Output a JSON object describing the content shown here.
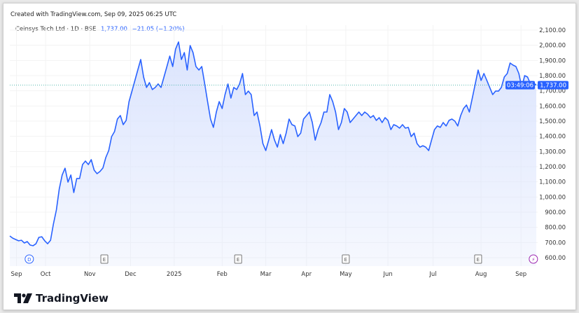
{
  "header": {
    "created": "Created with TradingView.com, Sep 09, 2025 06:25 UTC"
  },
  "legend": {
    "symbol": "Ceinsys Tech Ltd · 1D · BSE",
    "price": "1,737.00",
    "change": "−21.05 (−1.20%)"
  },
  "price_label": {
    "price": "1,737.00",
    "countdown": "03:49:06"
  },
  "colors": {
    "line": "#2962ff",
    "fill": "#dbe4fd",
    "label_bg": "#2962ff",
    "dividend": "#2962ff",
    "split": "#9c27b0"
  },
  "footer": {
    "brand": "TradingView"
  },
  "chart_data": {
    "type": "area",
    "title": "Ceinsys Tech Ltd · 1D · BSE",
    "ylabel": "",
    "xlabel": "",
    "ylim": [
      600,
      2100
    ],
    "yticks": [
      600,
      700,
      800,
      900,
      1000,
      1100,
      1200,
      1300,
      1400,
      1500,
      1600,
      1700,
      1800,
      1900,
      2000,
      2100
    ],
    "ytick_labels": [
      "600.00",
      "700.00",
      "800.00",
      "900.00",
      "1,000.00",
      "1,100.00",
      "1,200.00",
      "1,300.00",
      "1,400.00",
      "1,500.00",
      "1,600.00",
      "1,700.00",
      "1,800.00",
      "1,900.00",
      "2,000.00",
      "2,100.00"
    ],
    "xticks": [
      {
        "label": "Sep",
        "index": 2.3
      },
      {
        "label": "Oct",
        "index": 12.3
      },
      {
        "label": "Nov",
        "index": 27.5
      },
      {
        "label": "Dec",
        "index": 41.5
      },
      {
        "label": "2025",
        "index": 56.5
      },
      {
        "label": "Feb",
        "index": 73
      },
      {
        "label": "Mar",
        "index": 88
      },
      {
        "label": "Apr",
        "index": 102
      },
      {
        "label": "May",
        "index": 115.5
      },
      {
        "label": "Jun",
        "index": 130
      },
      {
        "label": "Jul",
        "index": 145.5
      },
      {
        "label": "Aug",
        "index": 162
      },
      {
        "label": "Sep",
        "index": 175.75
      }
    ],
    "events": [
      {
        "label": "D",
        "type": "dividend",
        "index": 6.7
      },
      {
        "label": "E",
        "type": "earnings",
        "index": 32.5
      },
      {
        "label": "E",
        "type": "earnings",
        "index": 78.5
      },
      {
        "label": "E",
        "type": "earnings",
        "index": 115.5
      },
      {
        "label": "E",
        "type": "earnings",
        "index": 161
      },
      {
        "label": "⚡",
        "type": "split",
        "index": 180
      }
    ],
    "last_value": 1737,
    "values": [
      743,
      729,
      720,
      711,
      715,
      697,
      706,
      683,
      679,
      692,
      734,
      738,
      711,
      692,
      715,
      822,
      914,
      1052,
      1145,
      1190,
      1098,
      1145,
      1029,
      1122,
      1122,
      1214,
      1237,
      1214,
      1246,
      1177,
      1154,
      1168,
      1191,
      1260,
      1306,
      1398,
      1431,
      1514,
      1537,
      1477,
      1505,
      1629,
      1698,
      1768,
      1837,
      1906,
      1791,
      1722,
      1754,
      1708,
      1722,
      1745,
      1722,
      1791,
      1860,
      1929,
      1860,
      1975,
      2022,
      1906,
      1952,
      1837,
      1998,
      1952,
      1860,
      1837,
      1860,
      1745,
      1629,
      1514,
      1459,
      1560,
      1629,
      1583,
      1675,
      1745,
      1652,
      1722,
      1708,
      1745,
      1814,
      1675,
      1698,
      1675,
      1537,
      1560,
      1468,
      1352,
      1306,
      1375,
      1444,
      1375,
      1329,
      1412,
      1352,
      1421,
      1514,
      1477,
      1468,
      1398,
      1421,
      1514,
      1537,
      1560,
      1491,
      1375,
      1444,
      1491,
      1560,
      1560,
      1675,
      1629,
      1560,
      1444,
      1491,
      1583,
      1560,
      1491,
      1514,
      1537,
      1560,
      1537,
      1560,
      1546,
      1523,
      1537,
      1505,
      1523,
      1491,
      1523,
      1505,
      1444,
      1477,
      1468,
      1454,
      1477,
      1454,
      1459,
      1398,
      1421,
      1352,
      1329,
      1338,
      1329,
      1306,
      1375,
      1444,
      1468,
      1459,
      1491,
      1468,
      1505,
      1514,
      1500,
      1468,
      1537,
      1583,
      1606,
      1560,
      1652,
      1745,
      1837,
      1768,
      1814,
      1768,
      1722,
      1675,
      1698,
      1698,
      1722,
      1791,
      1814,
      1883,
      1869,
      1860,
      1814,
      1722,
      1800,
      1791,
      1745,
      1754,
      1737
    ]
  }
}
